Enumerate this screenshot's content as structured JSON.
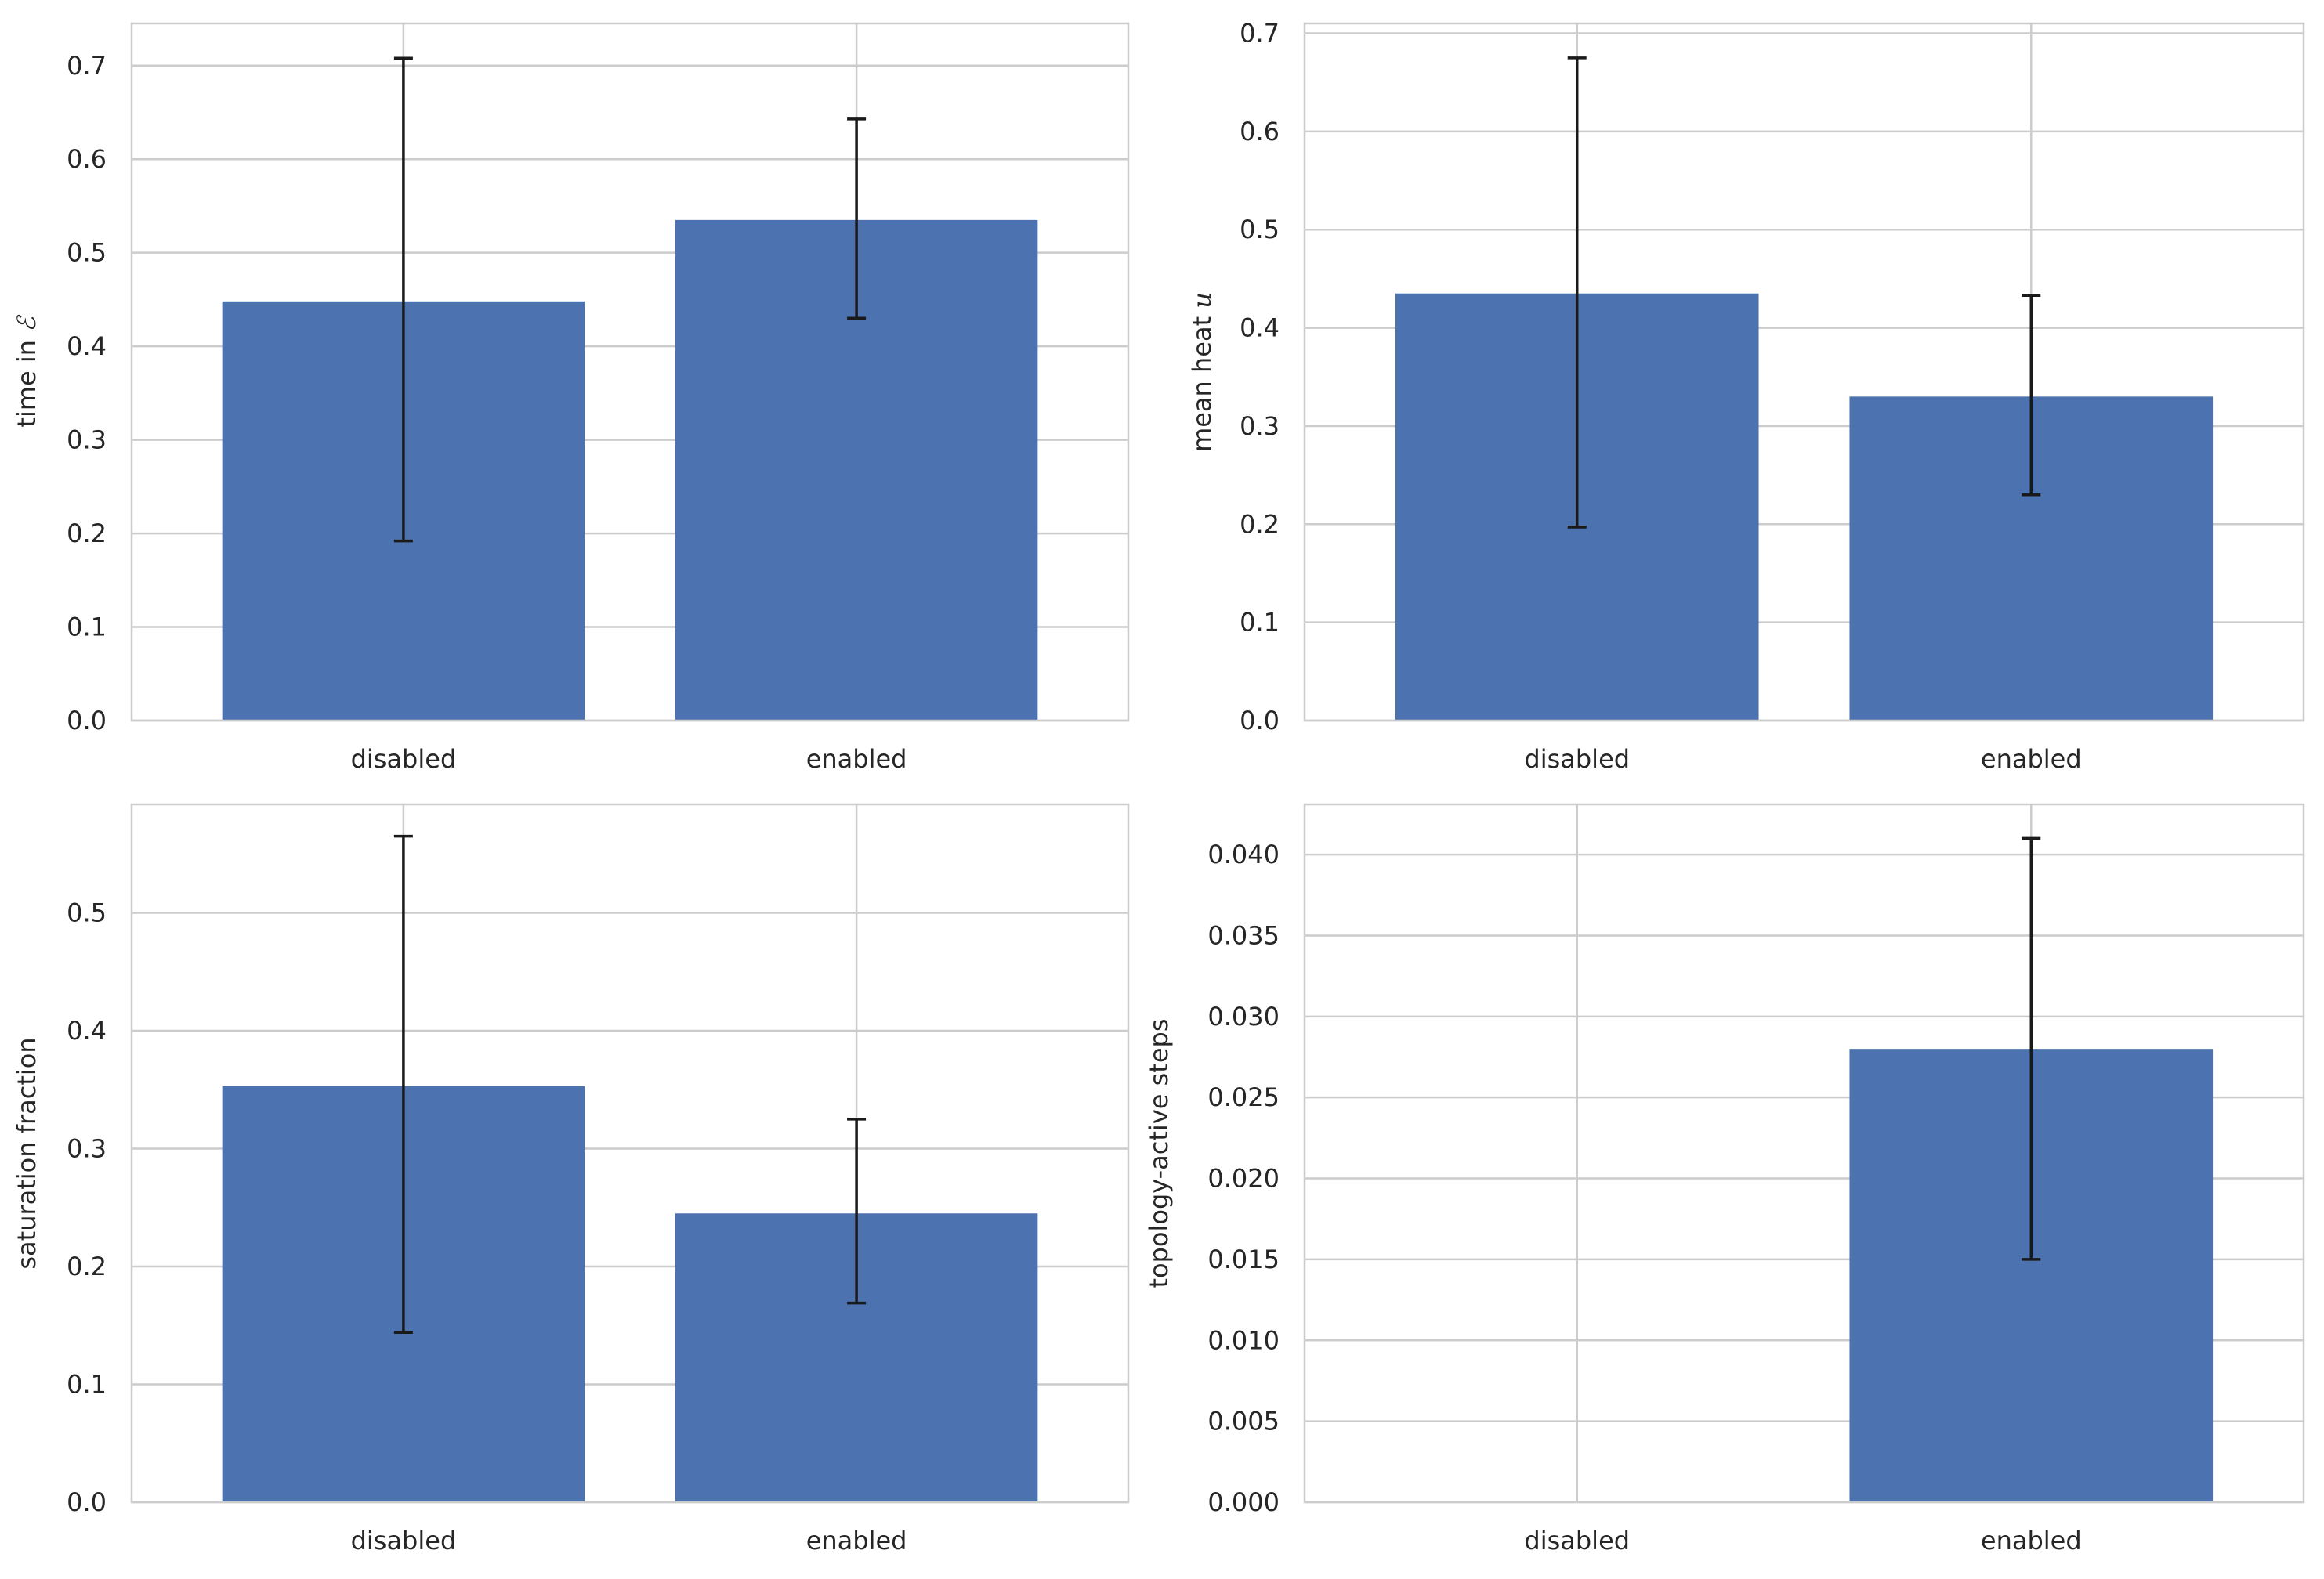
{
  "chart_data": [
    {
      "type": "bar",
      "categories": [
        "disabled",
        "enabled"
      ],
      "values": [
        0.448,
        0.535
      ],
      "errors": [
        [
          0.192,
          0.708
        ],
        [
          0.43,
          0.643
        ]
      ],
      "ylabel": "time in ",
      "ylabel_math": "ℰ",
      "ylim": [
        0,
        0.745
      ],
      "yticks": [
        0.0,
        0.1,
        0.2,
        0.3,
        0.4,
        0.5,
        0.6,
        0.7
      ],
      "ytick_labels": [
        "0.0",
        "0.1",
        "0.2",
        "0.3",
        "0.4",
        "0.5",
        "0.6",
        "0.7"
      ],
      "grid": true
    },
    {
      "type": "bar",
      "categories": [
        "disabled",
        "enabled"
      ],
      "values": [
        0.435,
        0.33
      ],
      "errors": [
        [
          0.197,
          0.675
        ],
        [
          0.23,
          0.433
        ]
      ],
      "ylabel": "mean heat ",
      "ylabel_math": "u",
      "ylim": [
        0,
        0.71
      ],
      "yticks": [
        0.0,
        0.1,
        0.2,
        0.3,
        0.4,
        0.5,
        0.6,
        0.7
      ],
      "ytick_labels": [
        "0.0",
        "0.1",
        "0.2",
        "0.3",
        "0.4",
        "0.5",
        "0.6",
        "0.7"
      ],
      "grid": true
    },
    {
      "type": "bar",
      "categories": [
        "disabled",
        "enabled"
      ],
      "values": [
        0.353,
        0.245
      ],
      "errors": [
        [
          0.144,
          0.565
        ],
        [
          0.169,
          0.325
        ]
      ],
      "ylabel": "saturation fraction",
      "ylabel_math": "",
      "ylim": [
        0,
        0.592
      ],
      "yticks": [
        0.0,
        0.1,
        0.2,
        0.3,
        0.4,
        0.5
      ],
      "ytick_labels": [
        "0.0",
        "0.1",
        "0.2",
        "0.3",
        "0.4",
        "0.5"
      ],
      "grid": true
    },
    {
      "type": "bar",
      "categories": [
        "disabled",
        "enabled"
      ],
      "values": [
        0.0,
        0.028
      ],
      "errors": [
        null,
        [
          0.015,
          0.041
        ]
      ],
      "ylabel": "topology-active steps",
      "ylabel_math": "",
      "ylim": [
        0,
        0.0431
      ],
      "yticks": [
        0.0,
        0.005,
        0.01,
        0.015,
        0.02,
        0.025,
        0.03,
        0.035,
        0.04
      ],
      "ytick_labels": [
        "0.000",
        "0.005",
        "0.010",
        "0.015",
        "0.020",
        "0.025",
        "0.030",
        "0.035",
        "0.040"
      ],
      "grid": true
    }
  ]
}
